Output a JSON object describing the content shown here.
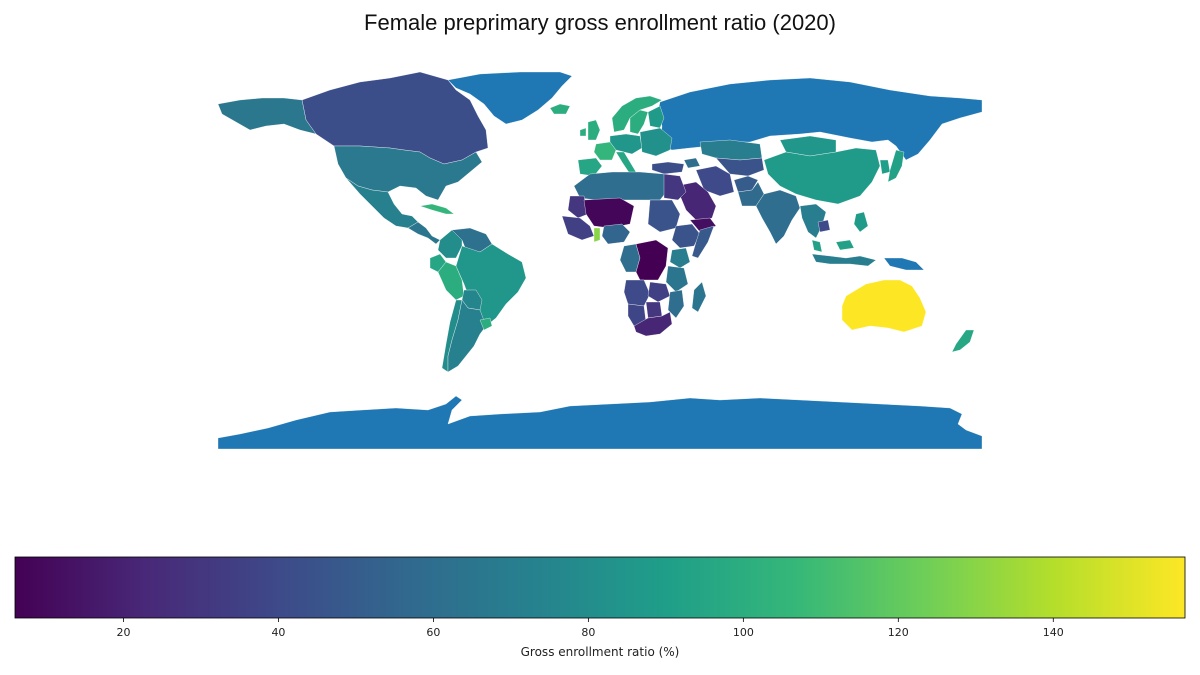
{
  "title": "Female preprimary gross enrollment ratio (2020)",
  "colorbar": {
    "label": "Gross enrollment ratio (%)",
    "min": 6,
    "max": 157,
    "ticks": [
      20,
      40,
      60,
      80,
      100,
      120,
      140
    ],
    "colormap": [
      "#440154",
      "#482878",
      "#3e4989",
      "#31688e",
      "#26828e",
      "#1f9e89",
      "#35b779",
      "#6ece58",
      "#b5de2b",
      "#fde725"
    ]
  },
  "map": {
    "projection": "equirectangular",
    "no_data_color": "#1f77b4",
    "regions": [
      {
        "name": "Antarctica",
        "value": null
      },
      {
        "name": "Russia",
        "value": null
      },
      {
        "name": "Greenland",
        "value": null
      },
      {
        "name": "Canada",
        "value": 42
      },
      {
        "name": "Alaska",
        "value": 66
      },
      {
        "name": "United States",
        "value": 67
      },
      {
        "name": "Mexico",
        "value": 72
      },
      {
        "name": "Central America",
        "value": 65
      },
      {
        "name": "Cuba",
        "value": 105
      },
      {
        "name": "Colombia",
        "value": 80
      },
      {
        "name": "Venezuela",
        "value": 62
      },
      {
        "name": "Ecuador",
        "value": 95
      },
      {
        "name": "Peru",
        "value": 100
      },
      {
        "name": "Brazil",
        "value": 85
      },
      {
        "name": "Bolivia",
        "value": 75
      },
      {
        "name": "Chile",
        "value": 80
      },
      {
        "name": "Argentina",
        "value": 72
      },
      {
        "name": "Uruguay",
        "value": 100
      },
      {
        "name": "Norway",
        "value": 100
      },
      {
        "name": "Sweden",
        "value": 100
      },
      {
        "name": "Finland",
        "value": 88
      },
      {
        "name": "Iceland",
        "value": 100
      },
      {
        "name": "United Kingdom",
        "value": 100
      },
      {
        "name": "Ireland",
        "value": 100
      },
      {
        "name": "France",
        "value": 105
      },
      {
        "name": "Iberia",
        "value": 95
      },
      {
        "name": "Central Europe",
        "value": 85
      },
      {
        "name": "Italy",
        "value": 95
      },
      {
        "name": "Eastern Europe",
        "value": 82
      },
      {
        "name": "Turkey",
        "value": 42
      },
      {
        "name": "Iran",
        "value": 40
      },
      {
        "name": "Caucasus",
        "value": 60
      },
      {
        "name": "Kazakhstan",
        "value": 70
      },
      {
        "name": "Central Asia",
        "value": 45
      },
      {
        "name": "Mongolia",
        "value": 85
      },
      {
        "name": "China",
        "value": 88
      },
      {
        "name": "Japan",
        "value": 92
      },
      {
        "name": "Korea",
        "value": 90
      },
      {
        "name": "Saudi Arabia",
        "value": 22
      },
      {
        "name": "Yemen",
        "value": 12
      },
      {
        "name": "Afghanistan",
        "value": 50
      },
      {
        "name": "Pakistan",
        "value": 58
      },
      {
        "name": "India",
        "value": 60
      },
      {
        "name": "Southeast Asia",
        "value": 70
      },
      {
        "name": "Cambodia",
        "value": 40
      },
      {
        "name": "Malaysia",
        "value": 92
      },
      {
        "name": "Philippines",
        "value": 88
      },
      {
        "name": "Indonesia",
        "value": 70
      },
      {
        "name": "Papua New Guinea",
        "value": null
      },
      {
        "name": "Australia",
        "value": 157
      },
      {
        "name": "New Zealand",
        "value": 96
      },
      {
        "name": "North Africa",
        "value": 60
      },
      {
        "name": "Egypt",
        "value": 30
      },
      {
        "name": "Mauritania",
        "value": 30
      },
      {
        "name": "Mali and Niger",
        "value": 8
      },
      {
        "name": "West Africa coast",
        "value": 35
      },
      {
        "name": "Ghana",
        "value": 130
      },
      {
        "name": "Nigeria",
        "value": 55
      },
      {
        "name": "Ethiopia",
        "value": 45
      },
      {
        "name": "Sudan",
        "value": 45
      },
      {
        "name": "Somalia",
        "value": 48
      },
      {
        "name": "DR Congo",
        "value": 6
      },
      {
        "name": "Congo and Gabon",
        "value": 60
      },
      {
        "name": "Kenya",
        "value": 70
      },
      {
        "name": "Tanzania",
        "value": 65
      },
      {
        "name": "Angola",
        "value": 40
      },
      {
        "name": "Zambia",
        "value": 35
      },
      {
        "name": "Namibia",
        "value": 38
      },
      {
        "name": "Botswana",
        "value": 30
      },
      {
        "name": "Mozambique",
        "value": 60
      },
      {
        "name": "South Africa",
        "value": 22
      },
      {
        "name": "Madagascar",
        "value": 65
      }
    ]
  }
}
